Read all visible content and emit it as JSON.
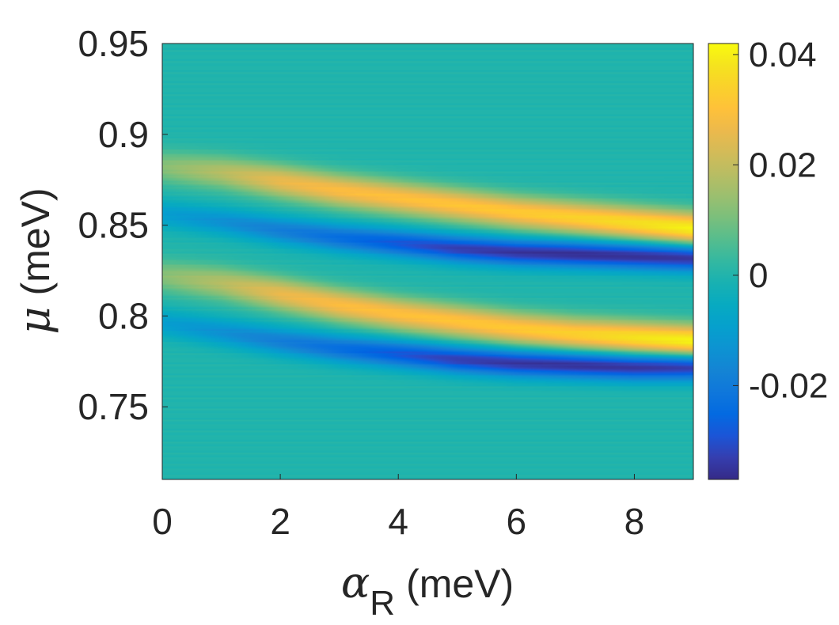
{
  "chart_data": {
    "type": "heatmap",
    "title": "",
    "xlabel": {
      "symbol": "α",
      "subscript": "R",
      "unit": "(meV)"
    },
    "ylabel": {
      "symbol": "μ",
      "unit": "(meV)"
    },
    "xlim": [
      0,
      9
    ],
    "ylim": [
      0.71,
      0.95
    ],
    "x_ticks": [
      0,
      2,
      4,
      6,
      8
    ],
    "x_tick_labels": [
      "0",
      "2",
      "4",
      "6",
      "8"
    ],
    "y_ticks": [
      0.75,
      0.8,
      0.85,
      0.9,
      0.95
    ],
    "y_tick_labels": [
      "0.75",
      "0.8",
      "0.85",
      "0.9",
      "0.95"
    ],
    "colorbar": {
      "range": [
        -0.037,
        0.042
      ],
      "ticks": [
        -0.02,
        0,
        0.02,
        0.04
      ],
      "tick_labels": [
        "-0.02",
        "0",
        "0.02",
        "0.04"
      ],
      "colormap": "parula"
    },
    "features": [
      {
        "name": "upper positive ridge",
        "sign": "positive",
        "alpha": [
          0,
          1,
          2,
          3,
          4,
          5,
          6,
          7,
          8,
          9
        ],
        "mu": [
          0.882,
          0.879,
          0.874,
          0.869,
          0.865,
          0.861,
          0.857,
          0.854,
          0.851,
          0.848
        ],
        "peak_value": [
          0.012,
          0.018,
          0.026,
          0.029,
          0.03,
          0.031,
          0.032,
          0.034,
          0.037,
          0.041
        ]
      },
      {
        "name": "upper negative trough",
        "sign": "negative",
        "alpha": [
          0,
          1,
          2,
          3,
          4,
          5,
          6,
          7,
          8,
          9
        ],
        "mu": [
          0.856,
          0.852,
          0.847,
          0.843,
          0.84,
          0.837,
          0.835,
          0.834,
          0.833,
          0.832
        ],
        "peak_value": [
          -0.01,
          -0.014,
          -0.019,
          -0.024,
          -0.029,
          -0.033,
          -0.035,
          -0.036,
          -0.036,
          -0.036
        ]
      },
      {
        "name": "lower positive ridge",
        "sign": "positive",
        "alpha": [
          0,
          1,
          2,
          3,
          4,
          5,
          6,
          7,
          8,
          9
        ],
        "mu": [
          0.822,
          0.818,
          0.812,
          0.806,
          0.801,
          0.797,
          0.793,
          0.79,
          0.788,
          0.786
        ],
        "peak_value": [
          0.012,
          0.018,
          0.026,
          0.029,
          0.03,
          0.031,
          0.032,
          0.034,
          0.038,
          0.042
        ]
      },
      {
        "name": "lower negative trough",
        "sign": "negative",
        "alpha": [
          0,
          1,
          2,
          3,
          4,
          5,
          6,
          7,
          8,
          9
        ],
        "mu": [
          0.796,
          0.791,
          0.786,
          0.782,
          0.779,
          0.776,
          0.774,
          0.773,
          0.772,
          0.772
        ],
        "peak_value": [
          -0.01,
          -0.014,
          -0.019,
          -0.024,
          -0.029,
          -0.033,
          -0.035,
          -0.036,
          -0.036,
          -0.036
        ]
      }
    ],
    "feature_widths_meV": {
      "positive": 0.009,
      "negative": 0.0075
    }
  }
}
